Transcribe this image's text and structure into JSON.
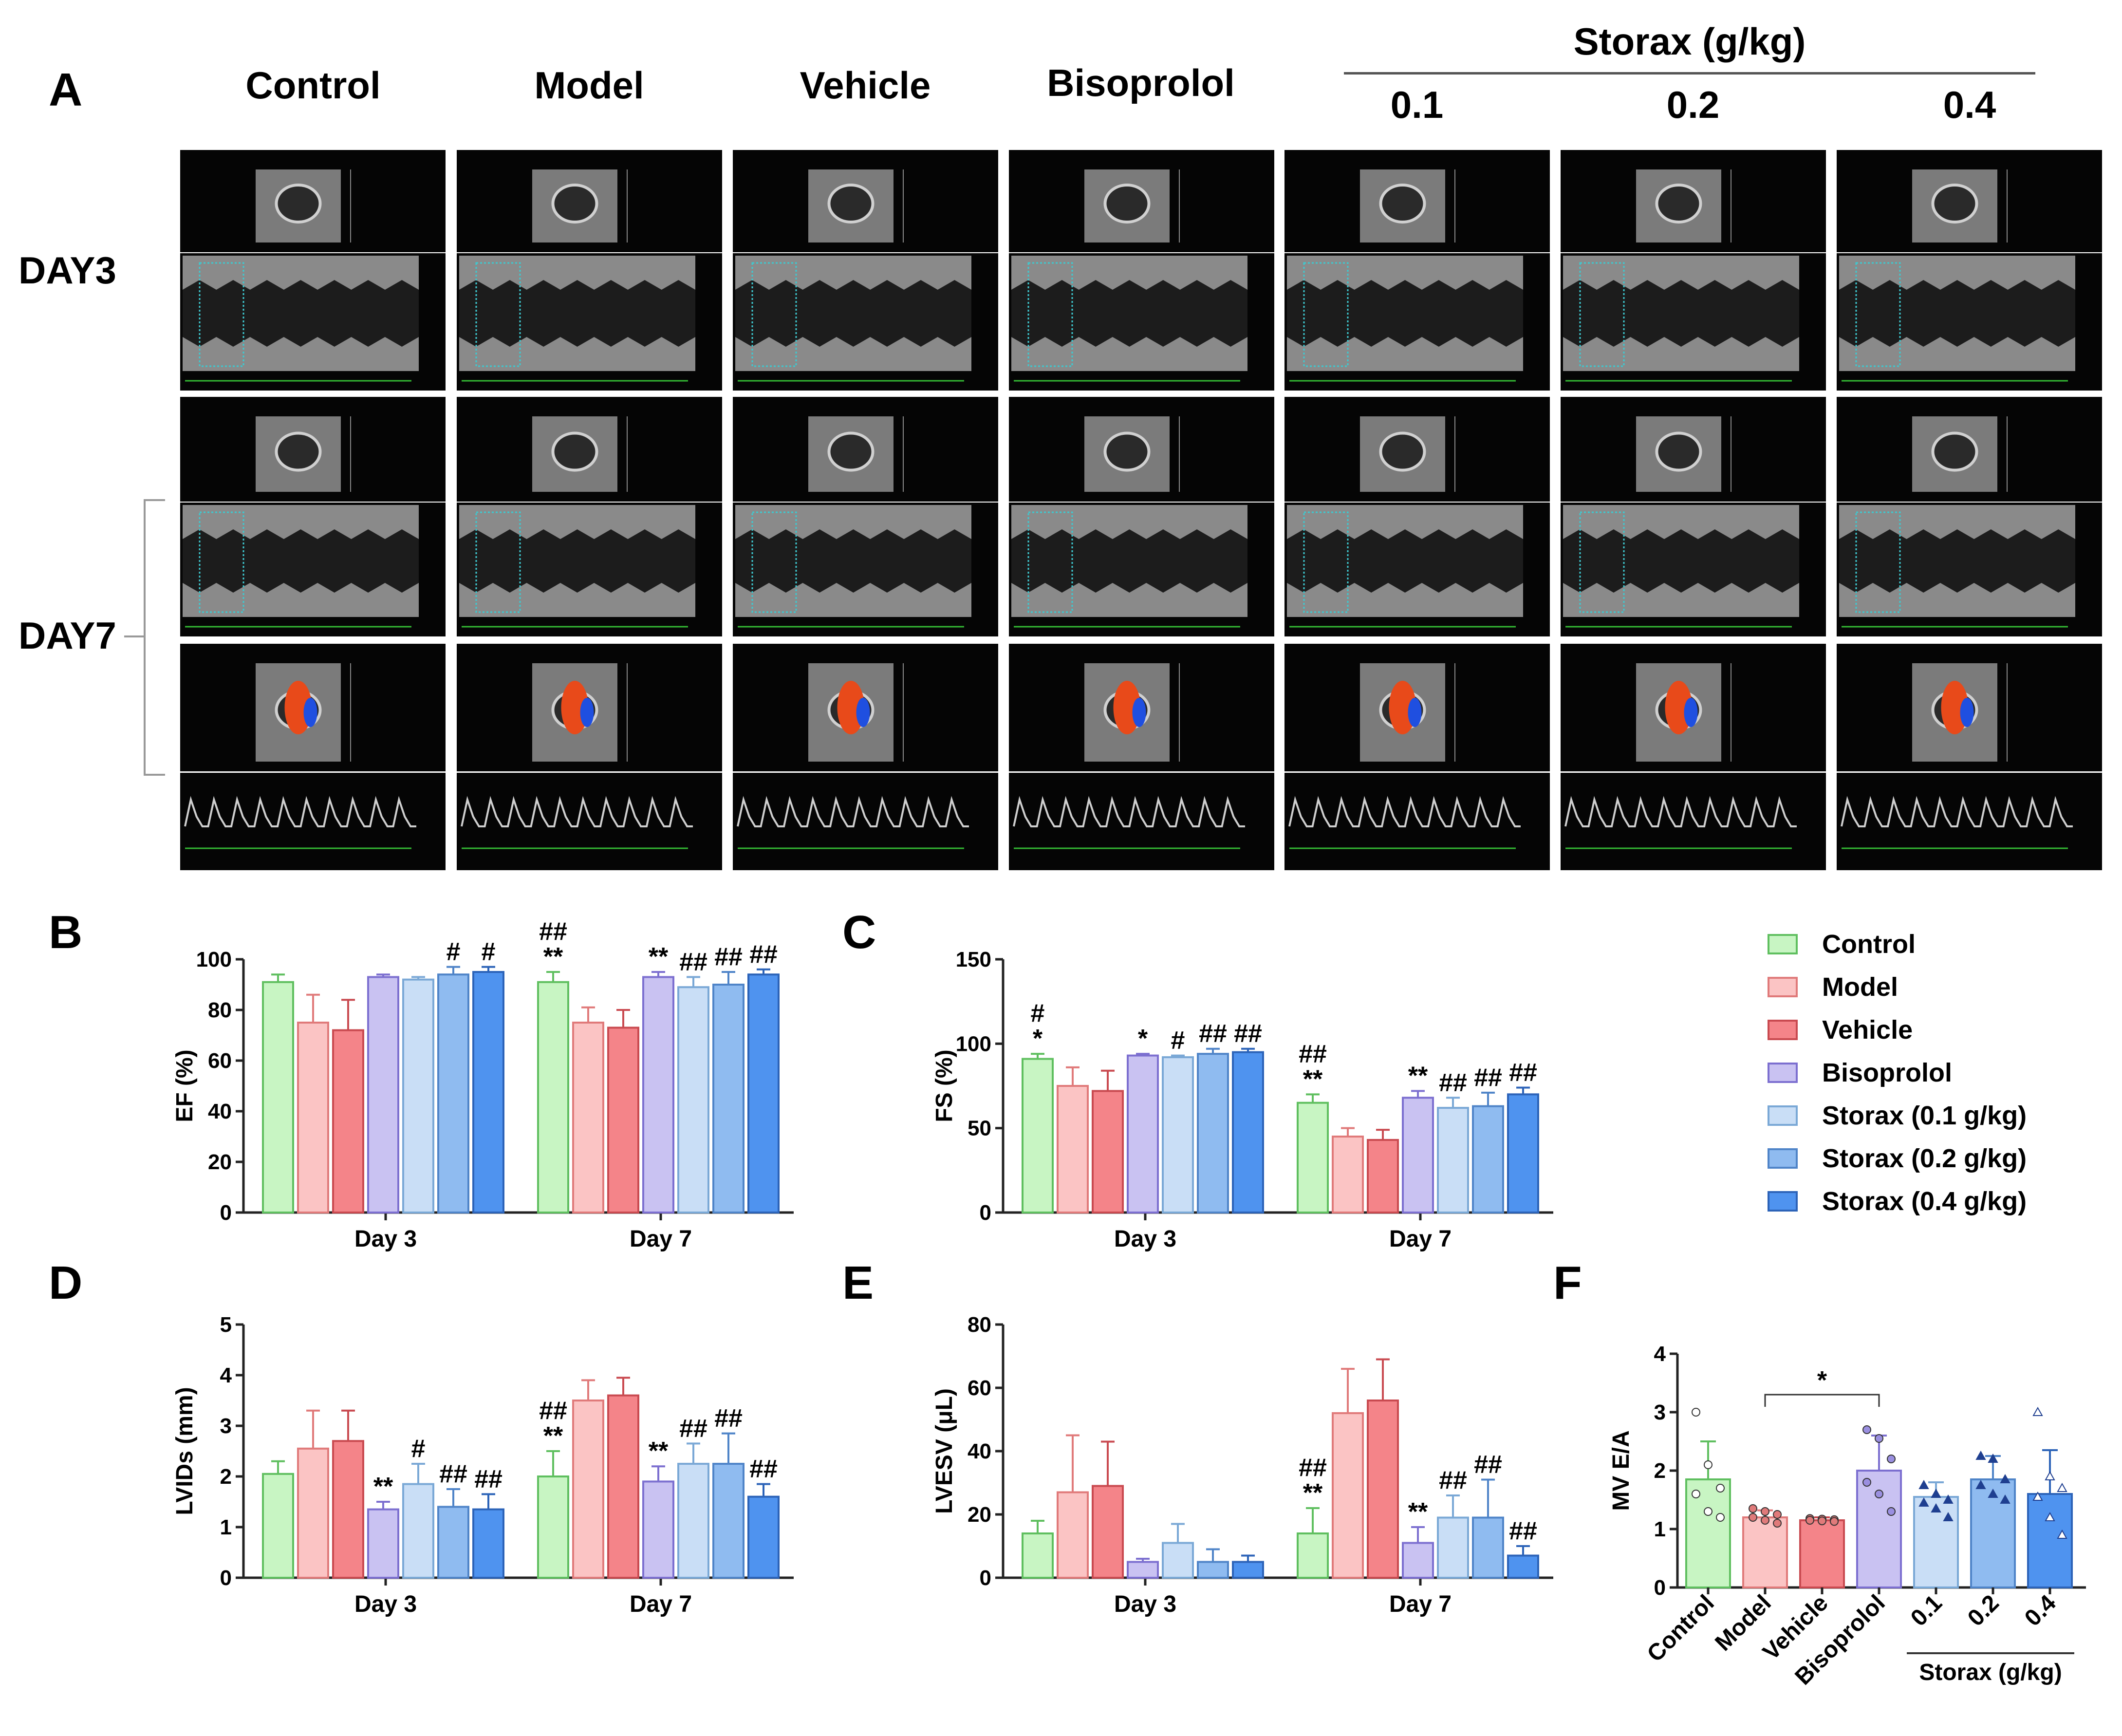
{
  "panel_labels": {
    "a": "A",
    "b": "B",
    "c": "C",
    "d": "D",
    "e": "E",
    "f": "F"
  },
  "panel_a": {
    "group_headers": [
      "Control",
      "Model",
      "Vehicle",
      "Bisoprolol"
    ],
    "storax_header": "Storax (g/kg)",
    "dose_headers": [
      "0.1",
      "0.2",
      "0.4"
    ],
    "row_labels": {
      "day3": "DAY3",
      "day7": "DAY7"
    }
  },
  "colors": {
    "fill": [
      "#c8f5c3",
      "#fbc4c4",
      "#f48489",
      "#c9c2f2",
      "#c9def6",
      "#8fbbf0",
      "#4f93ef"
    ],
    "edge": [
      "#5fbf5f",
      "#e07a7a",
      "#c94a50",
      "#7c6fd0",
      "#7aa8d6",
      "#4f84c8",
      "#2c63b8"
    ]
  },
  "legend": [
    "Control",
    "Model",
    "Vehicle",
    "Bisoprolol",
    "Storax (0.1 g/kg)",
    "Storax (0.2 g/kg)",
    "Storax (0.4 g/kg)"
  ],
  "chart_data": [
    {
      "id": "B",
      "type": "bar",
      "ylabel": "EF (%)",
      "ylim": [
        0,
        100
      ],
      "yticks": [
        0,
        20,
        40,
        60,
        80,
        100
      ],
      "categories": [
        "Day 3",
        "Day 7"
      ],
      "series": [
        {
          "name": "Control",
          "values": [
            91,
            91
          ],
          "err": [
            3,
            4
          ]
        },
        {
          "name": "Model",
          "values": [
            75,
            75
          ],
          "err": [
            11,
            6
          ]
        },
        {
          "name": "Vehicle",
          "values": [
            72,
            73
          ],
          "err": [
            12,
            7
          ]
        },
        {
          "name": "Bisoprolol",
          "values": [
            93,
            93
          ],
          "err": [
            1,
            2
          ]
        },
        {
          "name": "Storax (0.1 g/kg)",
          "values": [
            92,
            89
          ],
          "err": [
            1,
            4
          ]
        },
        {
          "name": "Storax (0.2 g/kg)",
          "values": [
            94,
            90
          ],
          "err": [
            3,
            5
          ]
        },
        {
          "name": "Storax (0.4 g/kg)",
          "values": [
            95,
            94
          ],
          "err": [
            2,
            2
          ]
        }
      ],
      "annotations": [
        [
          "",
          ""
        ],
        [
          "",
          ""
        ],
        [
          "",
          ""
        ],
        [
          "",
          ""
        ],
        [
          "",
          ""
        ],
        [
          "#",
          ""
        ],
        [
          "#",
          ""
        ]
      ],
      "annotations_day7": [
        [
          "##",
          "**"
        ],
        [
          "",
          ""
        ],
        [
          "",
          ""
        ],
        [
          "**",
          ""
        ],
        [
          "##",
          ""
        ],
        [
          "##",
          ""
        ],
        [
          "##",
          ""
        ]
      ]
    },
    {
      "id": "C",
      "type": "bar",
      "ylabel": "FS (%)",
      "ylim": [
        0,
        150
      ],
      "yticks": [
        0,
        50,
        100,
        150
      ],
      "categories": [
        "Day 3",
        "Day 7"
      ],
      "series": [
        {
          "name": "Control",
          "values": [
            91,
            65
          ],
          "err": [
            3,
            5
          ]
        },
        {
          "name": "Model",
          "values": [
            75,
            45
          ],
          "err": [
            11,
            5
          ]
        },
        {
          "name": "Vehicle",
          "values": [
            72,
            43
          ],
          "err": [
            12,
            6
          ]
        },
        {
          "name": "Bisoprolol",
          "values": [
            93,
            68
          ],
          "err": [
            1,
            4
          ]
        },
        {
          "name": "Storax (0.1 g/kg)",
          "values": [
            92,
            62
          ],
          "err": [
            1,
            6
          ]
        },
        {
          "name": "Storax (0.2 g/kg)",
          "values": [
            94,
            63
          ],
          "err": [
            3,
            8
          ]
        },
        {
          "name": "Storax (0.4 g/kg)",
          "values": [
            95,
            70
          ],
          "err": [
            2,
            4
          ]
        }
      ],
      "annotations": [
        [
          "#",
          "*"
        ],
        [
          "",
          ""
        ],
        [
          "",
          ""
        ],
        [
          "*",
          ""
        ],
        [
          "#",
          ""
        ],
        [
          "##",
          ""
        ],
        [
          "##",
          ""
        ]
      ],
      "annotations_day7": [
        [
          "##",
          "**"
        ],
        [
          "",
          ""
        ],
        [
          "",
          ""
        ],
        [
          "**",
          ""
        ],
        [
          "##",
          ""
        ],
        [
          "##",
          ""
        ],
        [
          "##",
          ""
        ]
      ]
    },
    {
      "id": "D",
      "type": "bar",
      "ylabel": "LVIDs (mm)",
      "ylim": [
        0,
        5
      ],
      "yticks": [
        0,
        1,
        2,
        3,
        4,
        5
      ],
      "categories": [
        "Day 3",
        "Day 7"
      ],
      "series": [
        {
          "name": "Control",
          "values": [
            2.05,
            2.0
          ],
          "err": [
            0.25,
            0.5
          ]
        },
        {
          "name": "Model",
          "values": [
            2.55,
            3.5
          ],
          "err": [
            0.75,
            0.4
          ]
        },
        {
          "name": "Vehicle",
          "values": [
            2.7,
            3.6
          ],
          "err": [
            0.6,
            0.35
          ]
        },
        {
          "name": "Bisoprolol",
          "values": [
            1.35,
            1.9
          ],
          "err": [
            0.15,
            0.3
          ]
        },
        {
          "name": "Storax (0.1 g/kg)",
          "values": [
            1.85,
            2.25
          ],
          "err": [
            0.4,
            0.4
          ]
        },
        {
          "name": "Storax (0.2 g/kg)",
          "values": [
            1.4,
            2.25
          ],
          "err": [
            0.35,
            0.6
          ]
        },
        {
          "name": "Storax (0.4 g/kg)",
          "values": [
            1.35,
            1.6
          ],
          "err": [
            0.3,
            0.25
          ]
        }
      ],
      "annotations": [
        [
          "",
          ""
        ],
        [
          "",
          ""
        ],
        [
          "",
          ""
        ],
        [
          "**",
          ""
        ],
        [
          "#",
          ""
        ],
        [
          "##",
          ""
        ],
        [
          "##",
          ""
        ]
      ],
      "annotations_day7": [
        [
          "##",
          "**"
        ],
        [
          "",
          ""
        ],
        [
          "",
          ""
        ],
        [
          "**",
          ""
        ],
        [
          "##",
          ""
        ],
        [
          "##",
          ""
        ],
        [
          "##",
          ""
        ]
      ]
    },
    {
      "id": "E",
      "type": "bar",
      "ylabel": "LVESV (μL)",
      "ylim": [
        0,
        80
      ],
      "yticks": [
        0,
        20,
        40,
        60,
        80
      ],
      "categories": [
        "Day 3",
        "Day 7"
      ],
      "series": [
        {
          "name": "Control",
          "values": [
            14,
            14
          ],
          "err": [
            4,
            8
          ]
        },
        {
          "name": "Model",
          "values": [
            27,
            52
          ],
          "err": [
            18,
            14
          ]
        },
        {
          "name": "Vehicle",
          "values": [
            29,
            56
          ],
          "err": [
            14,
            13
          ]
        },
        {
          "name": "Bisoprolol",
          "values": [
            5,
            11
          ],
          "err": [
            1,
            5
          ]
        },
        {
          "name": "Storax (0.1 g/kg)",
          "values": [
            11,
            19
          ],
          "err": [
            6,
            7
          ]
        },
        {
          "name": "Storax (0.2 g/kg)",
          "values": [
            5,
            19
          ],
          "err": [
            4,
            12
          ]
        },
        {
          "name": "Storax (0.4 g/kg)",
          "values": [
            5,
            7
          ],
          "err": [
            2,
            3
          ]
        }
      ],
      "annotations": [
        [
          "",
          ""
        ],
        [
          "",
          ""
        ],
        [
          "",
          ""
        ],
        [
          "",
          ""
        ],
        [
          "",
          ""
        ],
        [
          "",
          ""
        ],
        [
          "",
          ""
        ]
      ],
      "annotations_day7": [
        [
          "##",
          "**"
        ],
        [
          "",
          ""
        ],
        [
          "",
          ""
        ],
        [
          "**",
          ""
        ],
        [
          "##",
          ""
        ],
        [
          "##",
          ""
        ],
        [
          "##",
          ""
        ]
      ]
    },
    {
      "id": "F",
      "type": "bar",
      "ylabel": "MV E/A",
      "ylim": [
        0,
        4
      ],
      "yticks": [
        0,
        1,
        2,
        3,
        4
      ],
      "categories": [
        "Control",
        "Model",
        "Vehicle",
        "Bisoprolol",
        "0.1",
        "0.2",
        "0.4"
      ],
      "group_label": "Storax (g/kg)",
      "values": [
        1.85,
        1.2,
        1.15,
        2.0,
        1.55,
        1.85,
        1.6
      ],
      "err": [
        0.65,
        0.12,
        0.05,
        0.6,
        0.25,
        0.4,
        0.75
      ],
      "points": [
        [
          3.0,
          2.1,
          1.7,
          1.6,
          1.3,
          1.2
        ],
        [
          1.35,
          1.3,
          1.25,
          1.2,
          1.15,
          1.1
        ],
        [
          1.18,
          1.17,
          1.16,
          1.15,
          1.14,
          1.13
        ],
        [
          2.7,
          2.55,
          2.2,
          1.8,
          1.6,
          1.3
        ],
        [
          1.75,
          1.6,
          1.5,
          1.45,
          1.35,
          1.2
        ],
        [
          2.25,
          2.2,
          1.85,
          1.75,
          1.6,
          1.5
        ],
        [
          3.0,
          1.9,
          1.7,
          1.55,
          1.2,
          0.9
        ]
      ],
      "significance": {
        "from": 1,
        "to": 3,
        "label": "*"
      }
    }
  ]
}
